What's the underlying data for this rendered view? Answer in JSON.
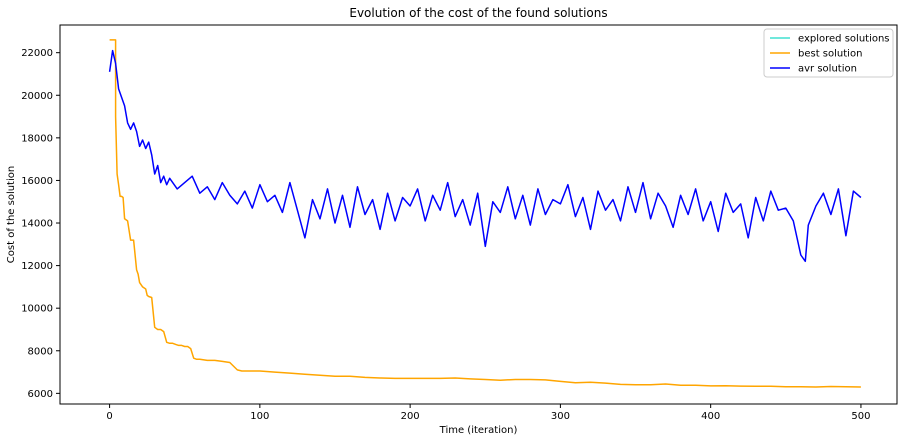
{
  "chart_data": {
    "type": "line",
    "title": "Evolution of the cost of the found solutions",
    "xlabel": "Time (iteration)",
    "ylabel": "Cost of the solution",
    "xlim": [
      -33,
      524
    ],
    "ylim": [
      5500,
      23300
    ],
    "xticks": [
      0,
      100,
      200,
      300,
      400,
      500
    ],
    "yticks": [
      6000,
      8000,
      10000,
      12000,
      14000,
      16000,
      18000,
      20000,
      22000
    ],
    "grid": false,
    "legend_position": "top-right",
    "colors": {
      "explored": "#40e0d0",
      "best": "#ffa500",
      "avr": "#0000ff"
    },
    "series": [
      {
        "name": "explored solutions",
        "color": "#40e0d0",
        "x": [],
        "y": []
      },
      {
        "name": "best solution",
        "color": "#ffa500",
        "x": [
          0,
          4,
          4,
          5,
          6,
          7,
          8,
          9,
          10,
          12,
          14,
          16,
          18,
          19,
          20,
          22,
          24,
          25,
          26,
          28,
          30,
          32,
          34,
          36,
          38,
          40,
          42,
          44,
          46,
          48,
          50,
          52,
          54,
          56,
          58,
          60,
          65,
          70,
          75,
          80,
          85,
          88,
          95,
          100,
          110,
          120,
          130,
          140,
          150,
          160,
          170,
          180,
          190,
          200,
          210,
          220,
          230,
          240,
          250,
          260,
          270,
          280,
          290,
          300,
          310,
          320,
          330,
          340,
          350,
          360,
          370,
          380,
          390,
          400,
          410,
          420,
          430,
          440,
          450,
          460,
          470,
          480,
          490,
          500
        ],
        "y": [
          22600,
          22600,
          19000,
          16300,
          15800,
          15250,
          15250,
          15200,
          14200,
          14100,
          13200,
          13200,
          11800,
          11600,
          11200,
          11000,
          10900,
          10600,
          10550,
          10500,
          9100,
          9000,
          9000,
          8900,
          8400,
          8350,
          8350,
          8300,
          8250,
          8250,
          8200,
          8200,
          8100,
          7650,
          7600,
          7600,
          7550,
          7550,
          7500,
          7450,
          7100,
          7050,
          7050,
          7050,
          7000,
          6950,
          6900,
          6850,
          6800,
          6800,
          6750,
          6720,
          6700,
          6700,
          6700,
          6700,
          6720,
          6680,
          6650,
          6620,
          6650,
          6650,
          6630,
          6560,
          6500,
          6520,
          6480,
          6420,
          6400,
          6400,
          6440,
          6380,
          6380,
          6350,
          6360,
          6340,
          6330,
          6330,
          6310,
          6310,
          6300,
          6320,
          6310,
          6300
        ]
      },
      {
        "name": "avr solution",
        "color": "#0000ff",
        "x": [
          0,
          2,
          4,
          6,
          8,
          10,
          12,
          14,
          16,
          18,
          20,
          22,
          24,
          26,
          28,
          30,
          32,
          34,
          36,
          38,
          40,
          45,
          50,
          55,
          60,
          65,
          70,
          75,
          80,
          85,
          90,
          95,
          100,
          105,
          110,
          115,
          120,
          125,
          130,
          135,
          140,
          145,
          150,
          155,
          160,
          165,
          170,
          175,
          180,
          185,
          190,
          195,
          200,
          205,
          210,
          215,
          220,
          225,
          230,
          235,
          240,
          245,
          250,
          255,
          260,
          265,
          270,
          275,
          280,
          285,
          290,
          295,
          300,
          305,
          310,
          315,
          320,
          325,
          330,
          335,
          340,
          345,
          350,
          355,
          360,
          365,
          370,
          375,
          380,
          385,
          390,
          395,
          400,
          405,
          410,
          415,
          420,
          425,
          430,
          435,
          440,
          445,
          450,
          455,
          460,
          463,
          465,
          470,
          475,
          480,
          485,
          490,
          495,
          500
        ],
        "y": [
          21100,
          22100,
          21500,
          20300,
          19900,
          19500,
          18700,
          18400,
          18700,
          18300,
          17600,
          17900,
          17500,
          17800,
          17200,
          16300,
          16700,
          15900,
          16200,
          15800,
          16100,
          15600,
          15900,
          16200,
          15400,
          15700,
          15100,
          15900,
          15300,
          14900,
          15500,
          14700,
          15800,
          15000,
          15300,
          14500,
          15900,
          14600,
          13300,
          15100,
          14200,
          15600,
          14000,
          15300,
          13800,
          15700,
          14400,
          15100,
          13700,
          15400,
          14100,
          15200,
          14800,
          15600,
          14100,
          15300,
          14600,
          15900,
          14300,
          15100,
          13900,
          15400,
          12900,
          15000,
          14500,
          15700,
          14200,
          15300,
          13900,
          15600,
          14400,
          15100,
          14900,
          15800,
          14300,
          15200,
          13700,
          15500,
          14600,
          15100,
          14100,
          15700,
          14500,
          15900,
          14200,
          15400,
          14800,
          13800,
          15300,
          14400,
          15600,
          14100,
          15000,
          13600,
          15400,
          14500,
          14900,
          13300,
          15200,
          14100,
          15500,
          14600,
          14700,
          14100,
          12500,
          12200,
          13900,
          14800,
          15400,
          14400,
          15600,
          13400,
          15500,
          15200
        ]
      }
    ]
  }
}
